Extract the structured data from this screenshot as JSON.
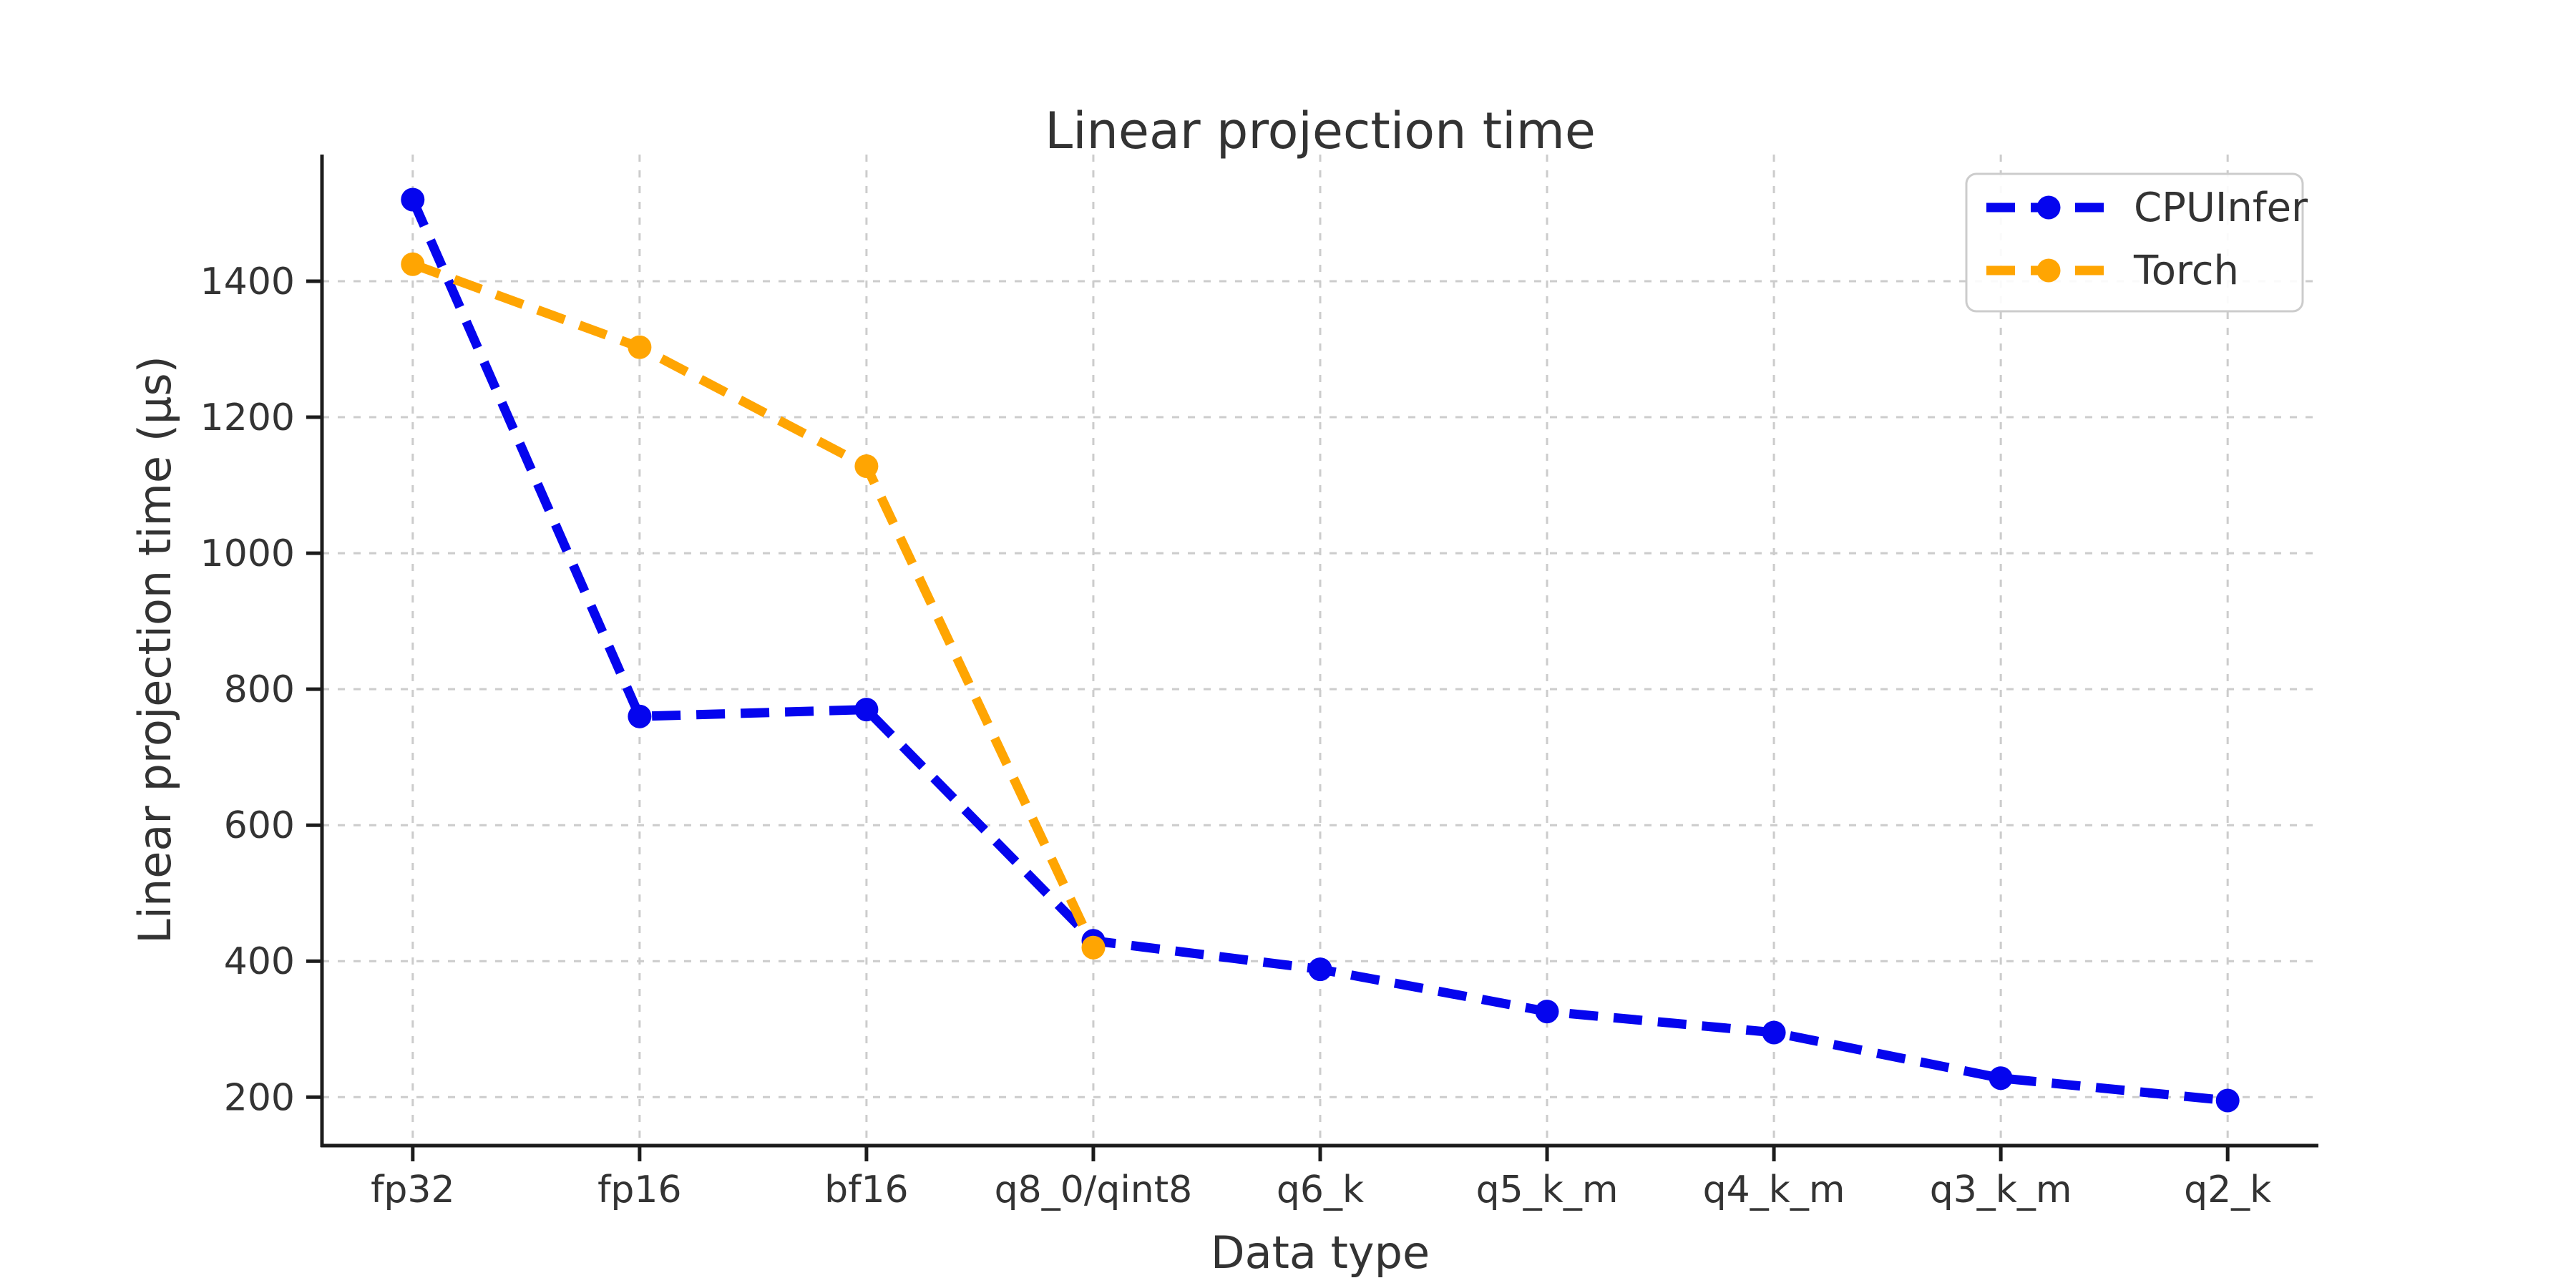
{
  "figure": {
    "background": "#ffffff",
    "text_color": "#2e2e2e",
    "spine_color": "#1c1c1c",
    "gridline_color": "#cccccc"
  },
  "chart_data": {
    "type": "line",
    "title": "Linear projection time",
    "xlabel": "Data type",
    "ylabel": "Linear projection time (μs)",
    "categories": [
      "fp32",
      "fp16",
      "bf16",
      "q8_0/qint8",
      "q6_k",
      "q5_k_m",
      "q4_k_m",
      "q3_k_m",
      "q2_k"
    ],
    "yticks": [
      200,
      400,
      600,
      800,
      1000,
      1200,
      1400
    ],
    "ylim": [
      128.75,
      1586.25
    ],
    "grid": true,
    "grid_style": "dashed",
    "legend_position": "upper right",
    "series": [
      {
        "name": "CPUInfer",
        "color": "#0505ee",
        "linestyle": "dashed",
        "marker": "circle",
        "values": [
          1520,
          760,
          770,
          430,
          388,
          326,
          295,
          228,
          195
        ]
      },
      {
        "name": "Torch",
        "color": "#ffa502",
        "linestyle": "dashed",
        "marker": "circle",
        "values": [
          1425,
          1303,
          1128,
          420
        ]
      }
    ]
  }
}
